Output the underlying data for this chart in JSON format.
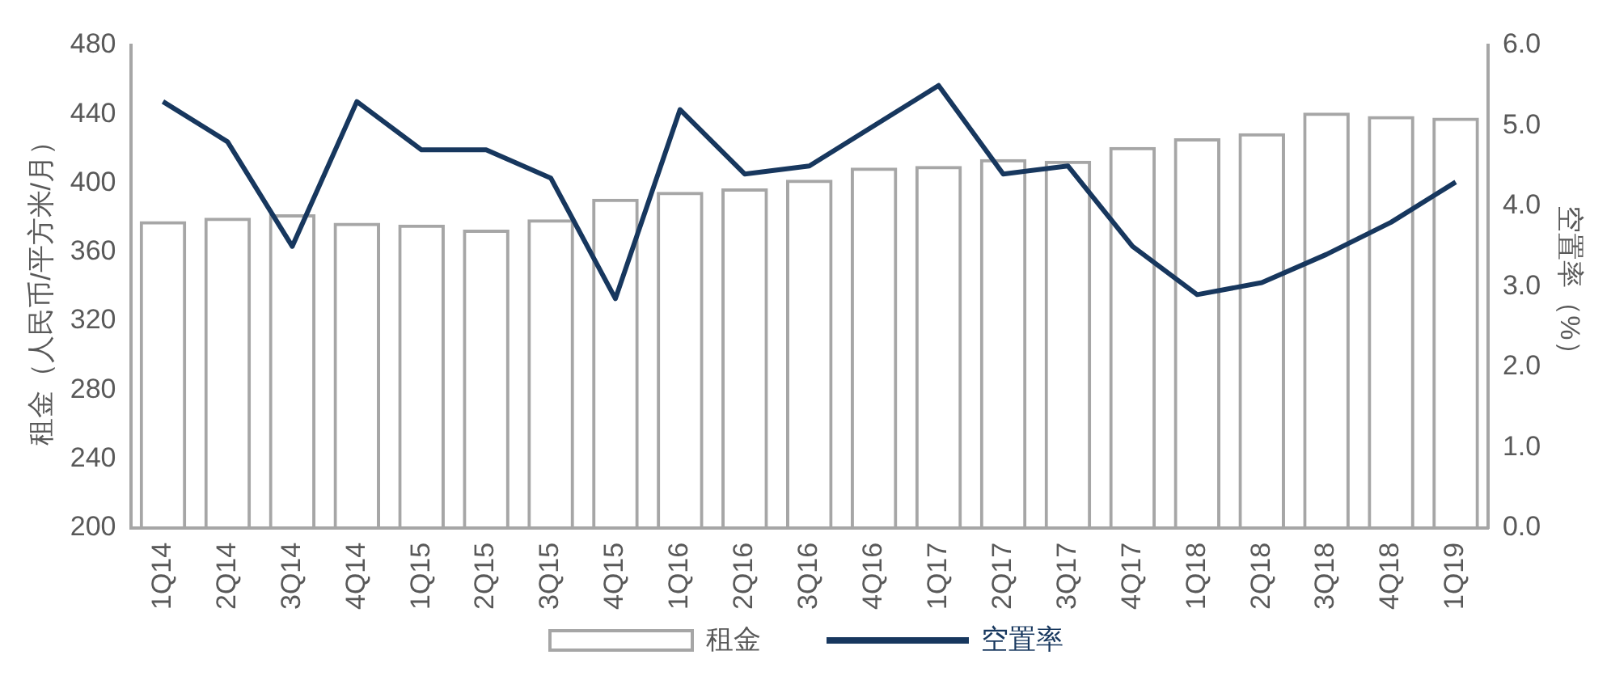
{
  "chart_data": {
    "type": "bar",
    "ylabel": "租金（人民币/平方米/月）",
    "y2label": "空置率（%）",
    "categories": [
      "1Q14",
      "2Q14",
      "3Q14",
      "4Q14",
      "1Q15",
      "2Q15",
      "3Q15",
      "4Q15",
      "1Q16",
      "2Q16",
      "3Q16",
      "4Q16",
      "1Q17",
      "2Q17",
      "3Q17",
      "4Q17",
      "1Q18",
      "2Q18",
      "3Q18",
      "4Q18",
      "1Q19"
    ],
    "series": [
      {
        "name": "租金",
        "type": "bar",
        "color": "#a6a6a6",
        "values": [
          378,
          380,
          382,
          377,
          376,
          373,
          379,
          391,
          395,
          397,
          402,
          409,
          410,
          414,
          413,
          421,
          426,
          429,
          441,
          439,
          438
        ]
      },
      {
        "name": "空置率",
        "type": "line",
        "axis": "y2",
        "color": "#17375e",
        "values": [
          5.3,
          4.8,
          3.5,
          5.3,
          4.7,
          4.7,
          4.35,
          2.85,
          5.2,
          4.4,
          4.5,
          5.0,
          5.5,
          4.4,
          4.5,
          3.5,
          2.9,
          3.05,
          3.4,
          3.8,
          4.3
        ]
      }
    ],
    "ylim": [
      200,
      480
    ],
    "yticks": [
      200,
      240,
      280,
      320,
      360,
      400,
      440,
      480
    ],
    "y2lim": [
      0,
      6
    ],
    "y2ticks": [
      {
        "value": 0,
        "label": "0.0"
      },
      {
        "value": 1,
        "label": "1.0"
      },
      {
        "value": 2,
        "label": "2.0"
      },
      {
        "value": 3,
        "label": "3.0"
      },
      {
        "value": 4,
        "label": "4.0"
      },
      {
        "value": 5,
        "label": "5.0"
      },
      {
        "value": 6,
        "label": "6.0"
      }
    ],
    "grid": false,
    "legend": "bottom",
    "marker": "none",
    "line_style": "solid"
  }
}
